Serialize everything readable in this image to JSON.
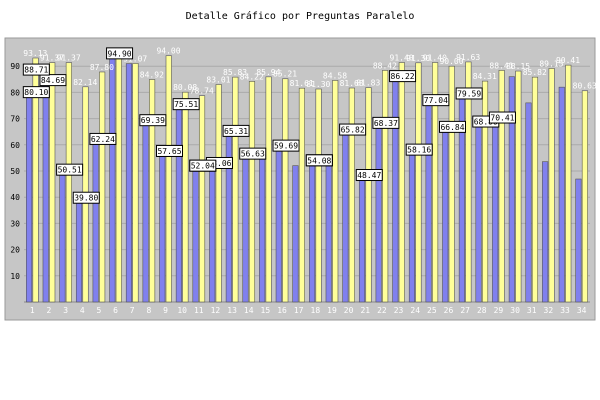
{
  "chart_data": {
    "type": "bar",
    "title": "Detalle Gráfico por Preguntas Paralelo",
    "xlabel": "",
    "ylabel": "",
    "ylim": [
      0,
      100
    ],
    "yticks": [
      10,
      20,
      30,
      40,
      50,
      60,
      70,
      80,
      90
    ],
    "grid": true,
    "legend": "none",
    "categories": [
      "1",
      "2",
      "3",
      "4",
      "5",
      "6",
      "7",
      "8",
      "9",
      "10",
      "11",
      "12",
      "13",
      "14",
      "15",
      "16",
      "17",
      "18",
      "19",
      "20",
      "21",
      "22",
      "23",
      "24",
      "25",
      "26",
      "27",
      "28",
      "29",
      "30",
      "31",
      "32",
      "33",
      "34"
    ],
    "series": [
      {
        "color": "#8080ee",
        "values": [
          80.1,
          84.69,
          50.51,
          39.8,
          62.24,
          94.9,
          91.0,
          69.39,
          57.65,
          75.51,
          52.04,
          53.06,
          65.31,
          56.63,
          57.65,
          59.69,
          52.04,
          54.08,
          54.08,
          65.82,
          48.47,
          68.37,
          86.22,
          58.16,
          77.04,
          66.84,
          79.59,
          68.88,
          70.41,
          86.0,
          76.0,
          53.57,
          82.0,
          46.94
        ]
      },
      {
        "color": "#ffff99",
        "values": [
          93.13,
          91.37,
          91.37,
          82.14,
          87.8,
          94.0,
          91.07,
          84.92,
          94.0,
          80.08,
          78.74,
          83.01,
          85.83,
          84.22,
          85.94,
          85.21,
          81.61,
          81.3,
          84.58,
          81.68,
          81.83,
          88.42,
          91.4,
          91.3,
          91.4,
          90.0,
          91.63,
          84.31,
          88.41,
          88.15,
          85.82,
          89.15,
          90.41,
          80.63
        ]
      }
    ],
    "boxed_labels": [
      80.1,
      84.69,
      50.51,
      88.71,
      39.8,
      62.24,
      94.9,
      69.39,
      57.65,
      75.51,
      52.04,
      53.06,
      65.31,
      56.63,
      57.65,
      59.69,
      52.04,
      54.08,
      54.08,
      65.82,
      48.47,
      68.37,
      86.22,
      58.16,
      77.04,
      66.84,
      79.59,
      68.88,
      70.41
    ]
  }
}
